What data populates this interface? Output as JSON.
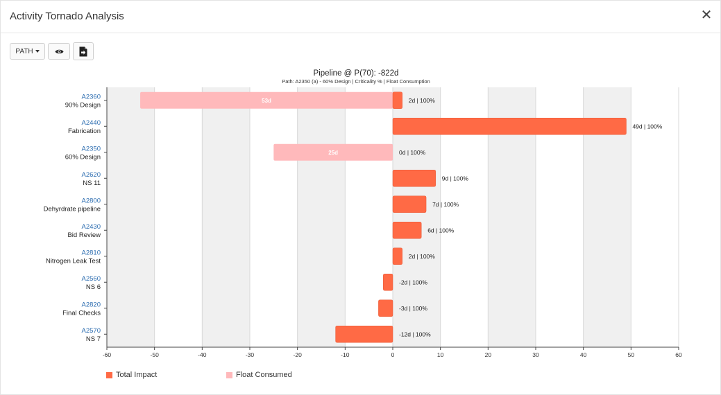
{
  "window": {
    "title": "Activity Tornado Analysis",
    "close_label": "✕"
  },
  "toolbar": {
    "path_label": "PATH",
    "view_icon": "eye-icon",
    "export_icon": "file-export-icon"
  },
  "colors": {
    "total_impact": "#ff6a45",
    "float_consumed": "#ffb9bb",
    "activity_id": "#2b6cb0",
    "band": "#f0f0f0"
  },
  "chart_data": {
    "type": "bar",
    "orientation": "horizontal",
    "title": "Pipeline @ P(70): -822d",
    "subtitle": "Path: A2350 (a) - 60% Design | Criticality % | Float Consumption",
    "xlim": [
      -60,
      60
    ],
    "xticks": [
      -60,
      -50,
      -40,
      -30,
      -20,
      -10,
      0,
      10,
      20,
      30,
      40,
      50,
      60
    ],
    "grid": true,
    "legend": [
      {
        "name": "Total Impact",
        "key": "total_impact"
      },
      {
        "name": "Float Consumed",
        "key": "float_consumed"
      }
    ],
    "activities": [
      {
        "id": "A2360",
        "name": "90% Design",
        "total_impact": 2,
        "float_consumed": -53,
        "float_label": "53d",
        "label": "2d | 100%"
      },
      {
        "id": "A2440",
        "name": "Fabrication",
        "total_impact": 49,
        "float_consumed": 0,
        "float_label": "",
        "label": "49d | 100%"
      },
      {
        "id": "A2350",
        "name": "60% Design",
        "total_impact": 0,
        "float_consumed": -25,
        "float_label": "25d",
        "label": "0d | 100%"
      },
      {
        "id": "A2620",
        "name": "NS 11",
        "total_impact": 9,
        "float_consumed": 0,
        "float_label": "",
        "label": "9d | 100%"
      },
      {
        "id": "A2800",
        "name": "Dehyrdrate pipeline",
        "total_impact": 7,
        "float_consumed": 0,
        "float_label": "",
        "label": "7d | 100%"
      },
      {
        "id": "A2430",
        "name": "Bid Review",
        "total_impact": 6,
        "float_consumed": 0,
        "float_label": "",
        "label": "6d | 100%"
      },
      {
        "id": "A2810",
        "name": "Nitrogen Leak Test",
        "total_impact": 2,
        "float_consumed": 0,
        "float_label": "",
        "label": "2d | 100%"
      },
      {
        "id": "A2560",
        "name": "NS 6",
        "total_impact": -2,
        "float_consumed": 0,
        "float_label": "",
        "label": "-2d | 100%"
      },
      {
        "id": "A2820",
        "name": "Final Checks",
        "total_impact": -3,
        "float_consumed": 0,
        "float_label": "",
        "label": "-3d | 100%"
      },
      {
        "id": "A2570",
        "name": "NS 7",
        "total_impact": -12,
        "float_consumed": 0,
        "float_label": "",
        "label": "-12d | 100%"
      }
    ]
  }
}
